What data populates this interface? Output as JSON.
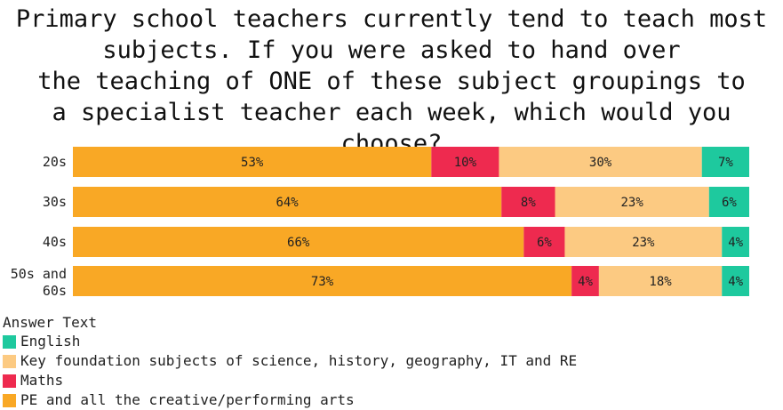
{
  "chart_data": {
    "type": "bar",
    "orientation": "horizontal",
    "stacked": true,
    "normalized": true,
    "title": "Primary school teachers currently tend to teach most subjects. If you were asked to hand over the teaching of ONE of these subject groupings to a specialist teacher each week, which would you choose?",
    "categories": [
      "20s",
      "30s",
      "40s",
      "50s and 60s"
    ],
    "series": [
      {
        "name": "PE and all the creative/performing arts",
        "color": "#f9a825",
        "values": [
          53,
          64,
          66,
          73
        ]
      },
      {
        "name": "Maths",
        "color": "#ee2a4f",
        "values": [
          10,
          8,
          6,
          4
        ]
      },
      {
        "name": "Key foundation subjects of science, history, geography, IT and RE",
        "color": "#fcca82",
        "values": [
          30,
          23,
          23,
          18
        ]
      },
      {
        "name": "English",
        "color": "#1ec99e",
        "values": [
          7,
          6,
          4,
          4
        ]
      }
    ],
    "value_suffix": "%",
    "xlim": [
      0,
      100
    ],
    "grid": false,
    "legend": {
      "title": "Answer Text",
      "placement": "bottom-left",
      "order": [
        "English",
        "Key foundation subjects of science, history, geography, IT and RE",
        "Maths",
        "PE and all the creative/performing arts"
      ]
    }
  }
}
